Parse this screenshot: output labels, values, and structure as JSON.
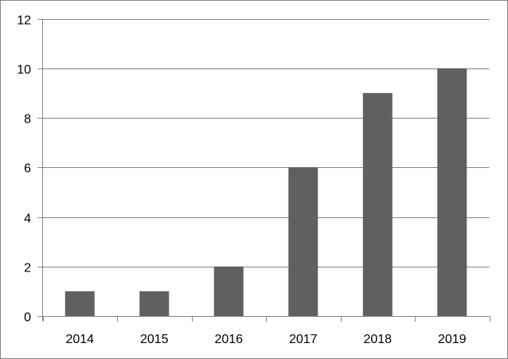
{
  "chart_data": {
    "type": "bar",
    "categories": [
      "2014",
      "2015",
      "2016",
      "2017",
      "2018",
      "2019"
    ],
    "values": [
      1,
      1,
      2,
      6,
      9,
      10
    ],
    "title": "",
    "xlabel": "",
    "ylabel": "",
    "ylim": [
      0,
      12
    ],
    "yticks": [
      "0",
      "2",
      "4",
      "6",
      "8",
      "10",
      "12"
    ],
    "grid": true,
    "legend": "none",
    "bar_color": "#606060",
    "grid_color": "#868686"
  }
}
